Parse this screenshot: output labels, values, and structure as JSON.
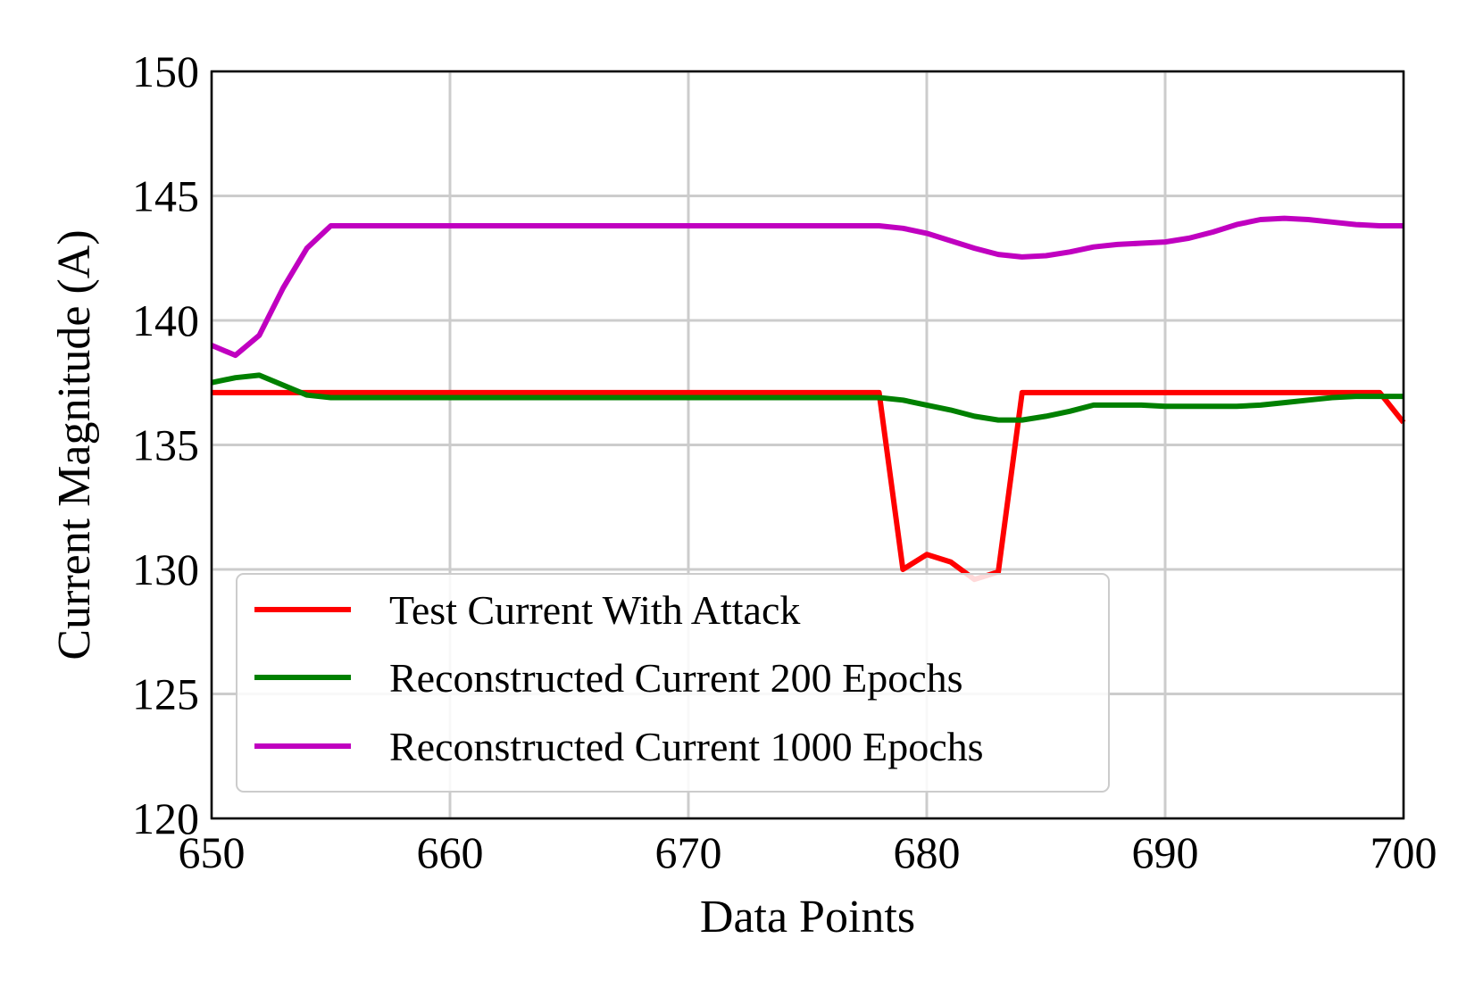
{
  "chart_data": {
    "type": "line",
    "title": "",
    "xlabel": "Data Points",
    "ylabel": "Current Magnitude (A)",
    "xlim": [
      650,
      700
    ],
    "ylim": [
      120,
      150
    ],
    "xticks": [
      650,
      660,
      670,
      680,
      690,
      700
    ],
    "yticks": [
      120,
      125,
      130,
      135,
      140,
      145,
      150
    ],
    "grid": true,
    "legend_position": "lower-left",
    "x": [
      650,
      651,
      652,
      653,
      654,
      655,
      656,
      657,
      658,
      659,
      660,
      661,
      662,
      663,
      664,
      665,
      666,
      667,
      668,
      669,
      670,
      671,
      672,
      673,
      674,
      675,
      676,
      677,
      678,
      679,
      680,
      681,
      682,
      683,
      684,
      685,
      686,
      687,
      688,
      689,
      690,
      691,
      692,
      693,
      694,
      695,
      696,
      697,
      698,
      699,
      700
    ],
    "series": [
      {
        "name": "Test Current With Attack",
        "color": "#ff0000",
        "values": [
          137.1,
          137.1,
          137.1,
          137.1,
          137.1,
          137.1,
          137.1,
          137.1,
          137.1,
          137.1,
          137.1,
          137.1,
          137.1,
          137.1,
          137.1,
          137.1,
          137.1,
          137.1,
          137.1,
          137.1,
          137.1,
          137.1,
          137.1,
          137.1,
          137.1,
          137.1,
          137.1,
          137.1,
          137.1,
          130.0,
          130.6,
          130.3,
          129.6,
          129.9,
          137.1,
          137.1,
          137.1,
          137.1,
          137.1,
          137.1,
          137.1,
          137.1,
          137.1,
          137.1,
          137.1,
          137.1,
          137.1,
          137.1,
          137.1,
          137.1,
          135.9
        ]
      },
      {
        "name": "Reconstructed Current 200 Epochs",
        "color": "#008000",
        "values": [
          137.5,
          137.7,
          137.8,
          137.4,
          137.0,
          136.9,
          136.9,
          136.9,
          136.9,
          136.9,
          136.9,
          136.9,
          136.9,
          136.9,
          136.9,
          136.9,
          136.9,
          136.9,
          136.9,
          136.9,
          136.9,
          136.9,
          136.9,
          136.9,
          136.9,
          136.9,
          136.9,
          136.9,
          136.9,
          136.8,
          136.6,
          136.4,
          136.15,
          136.0,
          136.0,
          136.15,
          136.35,
          136.6,
          136.6,
          136.6,
          136.55,
          136.55,
          136.55,
          136.55,
          136.6,
          136.7,
          136.8,
          136.9,
          136.95,
          136.95,
          136.95
        ]
      },
      {
        "name": "Reconstructed Current 1000 Epochs",
        "color": "#c000c0",
        "values": [
          139.0,
          138.6,
          139.4,
          141.3,
          142.9,
          143.8,
          143.8,
          143.8,
          143.8,
          143.8,
          143.8,
          143.8,
          143.8,
          143.8,
          143.8,
          143.8,
          143.8,
          143.8,
          143.8,
          143.8,
          143.8,
          143.8,
          143.8,
          143.8,
          143.8,
          143.8,
          143.8,
          143.8,
          143.8,
          143.7,
          143.5,
          143.2,
          142.9,
          142.65,
          142.55,
          142.6,
          142.75,
          142.95,
          143.05,
          143.1,
          143.15,
          143.3,
          143.55,
          143.85,
          144.05,
          144.1,
          144.05,
          143.95,
          143.85,
          143.8,
          143.8
        ]
      }
    ]
  }
}
